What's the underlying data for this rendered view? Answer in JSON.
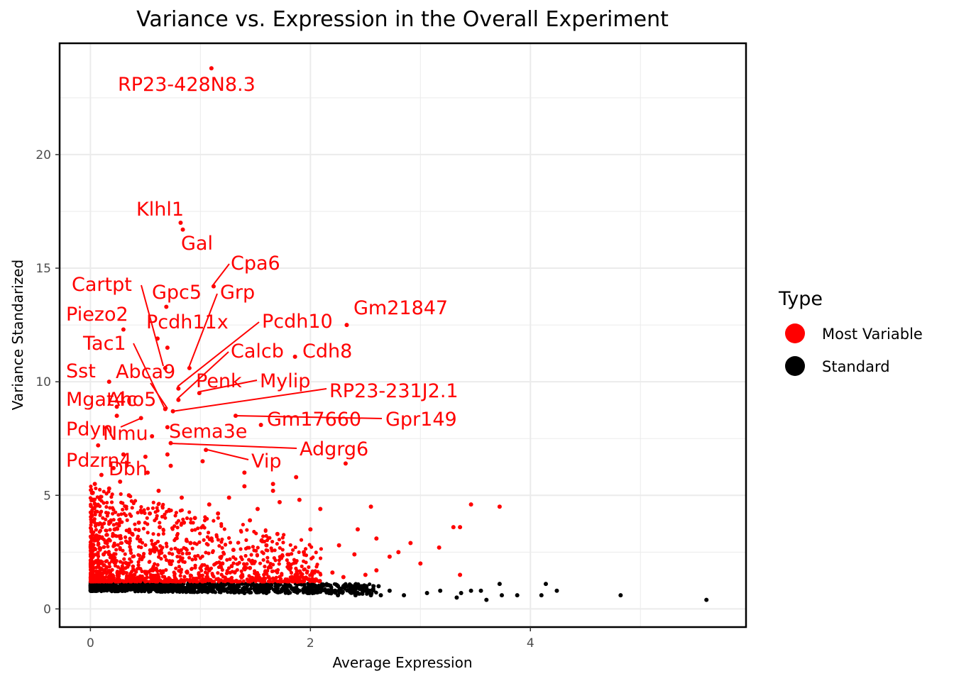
{
  "chart_data": {
    "type": "scatter",
    "title": "Variance vs. Expression in the Overall Experiment",
    "xlabel": "Average Expression",
    "ylabel": "Variance Standarized",
    "xlim": [
      -0.28,
      5.96
    ],
    "ylim": [
      -0.8,
      24.9
    ],
    "x_ticks": [
      0,
      2,
      4
    ],
    "y_ticks": [
      0,
      5,
      10,
      15,
      20
    ],
    "grid": true,
    "legend": {
      "title": "Type",
      "position": "right",
      "entries": [
        {
          "label": "Most Variable",
          "color": "#ff0000"
        },
        {
          "label": "Standard",
          "color": "#000000"
        }
      ]
    },
    "colors": {
      "most_variable": "#ff0000",
      "standard": "#000000",
      "grid": "#ebebeb",
      "panel_border": "#000000"
    },
    "series": [
      {
        "name": "Most Variable",
        "color": "#ff0000",
        "points": [
          [
            1.1,
            23.8
          ],
          [
            0.82,
            17.0
          ],
          [
            0.84,
            16.7
          ],
          [
            1.12,
            14.2
          ],
          [
            0.69,
            13.3
          ],
          [
            0.3,
            12.3
          ],
          [
            2.33,
            12.5
          ],
          [
            0.7,
            11.5
          ],
          [
            0.61,
            11.9
          ],
          [
            1.86,
            11.1
          ],
          [
            0.9,
            10.6
          ],
          [
            0.68,
            10.6
          ],
          [
            0.17,
            10.0
          ],
          [
            0.8,
            9.7
          ],
          [
            0.99,
            9.5
          ],
          [
            0.8,
            9.2
          ],
          [
            0.24,
            8.9
          ],
          [
            0.68,
            8.8
          ],
          [
            0.75,
            8.7
          ],
          [
            1.32,
            8.5
          ],
          [
            0.24,
            8.5
          ],
          [
            0.46,
            8.4
          ],
          [
            1.55,
            8.1
          ],
          [
            0.7,
            8.0
          ],
          [
            0.56,
            7.6
          ],
          [
            0.73,
            7.3
          ],
          [
            0.07,
            7.2
          ],
          [
            1.05,
            7.0
          ],
          [
            0.3,
            6.8
          ],
          [
            0.7,
            6.8
          ],
          [
            0.5,
            6.7
          ],
          [
            1.02,
            6.5
          ],
          [
            2.32,
            6.4
          ],
          [
            0.73,
            6.3
          ],
          [
            0.21,
            6.2
          ],
          [
            0.52,
            6.0
          ],
          [
            1.4,
            6.0
          ],
          [
            0.1,
            5.9
          ],
          [
            1.87,
            5.8
          ],
          [
            0.27,
            5.6
          ],
          [
            0.04,
            5.5
          ],
          [
            1.4,
            5.4
          ],
          [
            1.66,
            5.5
          ],
          [
            0.17,
            5.3
          ],
          [
            0.62,
            5.2
          ],
          [
            1.66,
            5.2
          ],
          [
            0.35,
            5.0
          ],
          [
            0.83,
            4.9
          ],
          [
            1.26,
            4.9
          ],
          [
            1.72,
            4.7
          ],
          [
            1.9,
            4.8
          ],
          [
            3.46,
            4.6
          ],
          [
            3.72,
            4.5
          ],
          [
            2.55,
            4.5
          ],
          [
            1.08,
            4.6
          ],
          [
            1.52,
            4.4
          ],
          [
            0.54,
            4.2
          ],
          [
            0.95,
            4.0
          ],
          [
            2.09,
            4.4
          ],
          [
            1.16,
            4.2
          ],
          [
            1.45,
            3.9
          ],
          [
            0.44,
            3.8
          ],
          [
            0.85,
            3.8
          ],
          [
            3.36,
            3.6
          ],
          [
            3.3,
            3.6
          ],
          [
            0.22,
            3.5
          ],
          [
            0.63,
            3.6
          ],
          [
            2.0,
            3.5
          ],
          [
            2.43,
            3.5
          ],
          [
            1.7,
            3.3
          ],
          [
            2.6,
            3.1
          ],
          [
            0.38,
            3.3
          ],
          [
            1.1,
            3.1
          ],
          [
            2.91,
            2.9
          ],
          [
            3.17,
            2.7
          ],
          [
            0.91,
            2.9
          ],
          [
            1.6,
            2.8
          ],
          [
            2.26,
            2.8
          ],
          [
            2.8,
            2.5
          ],
          [
            0.15,
            2.9
          ],
          [
            0.58,
            2.7
          ],
          [
            1.3,
            2.6
          ],
          [
            2.4,
            2.4
          ],
          [
            1.94,
            2.5
          ],
          [
            2.72,
            2.3
          ],
          [
            3.0,
            2.0
          ],
          [
            2.6,
            1.7
          ],
          [
            1.8,
            2.0
          ],
          [
            3.36,
            1.5
          ],
          [
            0.48,
            2.3
          ],
          [
            0.05,
            2.1
          ],
          [
            0.12,
            2.4
          ],
          [
            0.33,
            2.0
          ],
          [
            0.72,
            2.1
          ],
          [
            1.2,
            2.0
          ],
          [
            1.45,
            1.8
          ],
          [
            0.02,
            1.8
          ],
          [
            0.26,
            1.6
          ],
          [
            0.88,
            1.6
          ],
          [
            1.08,
            1.7
          ],
          [
            2.2,
            1.6
          ],
          [
            2.5,
            1.5
          ],
          [
            0.4,
            1.5
          ],
          [
            0.62,
            1.4
          ],
          [
            1.62,
            1.4
          ],
          [
            2.05,
            1.3
          ],
          [
            0.95,
            1.3
          ],
          [
            1.88,
            1.2
          ],
          [
            0.1,
            1.4
          ],
          [
            0.55,
            1.7
          ],
          [
            1.38,
            1.5
          ],
          [
            2.3,
            1.4
          ]
        ]
      },
      {
        "name": "Standard",
        "color": "#000000",
        "points": [
          [
            5.6,
            0.4
          ],
          [
            4.82,
            0.6
          ],
          [
            4.24,
            0.8
          ],
          [
            4.14,
            1.1
          ],
          [
            4.1,
            0.6
          ],
          [
            3.88,
            0.6
          ],
          [
            3.74,
            0.6
          ],
          [
            3.6,
            0.4
          ],
          [
            3.72,
            1.1
          ],
          [
            3.55,
            0.8
          ],
          [
            3.46,
            0.8
          ],
          [
            3.37,
            0.7
          ],
          [
            3.33,
            0.5
          ],
          [
            3.18,
            0.8
          ],
          [
            3.06,
            0.7
          ],
          [
            2.85,
            0.6
          ],
          [
            2.64,
            0.6
          ],
          [
            2.55,
            0.6
          ],
          [
            2.72,
            0.8
          ],
          [
            2.62,
            1.0
          ],
          [
            2.41,
            0.6
          ],
          [
            2.51,
            1.0
          ],
          [
            2.25,
            0.6
          ],
          [
            2.17,
            0.7
          ],
          [
            2.3,
            1.0
          ],
          [
            2.1,
            0.9
          ],
          [
            1.99,
            0.7
          ],
          [
            2.02,
            1.0
          ],
          [
            1.9,
            0.8
          ],
          [
            1.8,
            0.7
          ],
          [
            1.7,
            0.9
          ],
          [
            1.6,
            0.7
          ],
          [
            1.55,
            1.0
          ],
          [
            1.5,
            0.8
          ],
          [
            1.4,
            0.7
          ],
          [
            1.3,
            0.8
          ],
          [
            1.2,
            0.9
          ],
          [
            1.1,
            0.8
          ],
          [
            1.0,
            0.9
          ],
          [
            0.9,
            0.8
          ],
          [
            0.8,
            0.9
          ],
          [
            0.7,
            0.8
          ],
          [
            0.6,
            0.9
          ],
          [
            0.5,
            0.9
          ],
          [
            0.4,
            0.9
          ],
          [
            0.3,
            1.0
          ],
          [
            0.2,
            0.9
          ],
          [
            0.1,
            1.0
          ],
          [
            0.01,
            1.0
          ],
          [
            0.01,
            0.8
          ]
        ]
      }
    ],
    "labels": [
      {
        "text": "RP23-428N8.3",
        "x": 1.1,
        "y": 23.8
      },
      {
        "text": "Klhl1",
        "x": 0.82,
        "y": 17.0
      },
      {
        "text": "Gal",
        "x": 0.84,
        "y": 16.7
      },
      {
        "text": "Cpa6",
        "x": 1.12,
        "y": 14.2
      },
      {
        "text": "Cartpt",
        "x": 0.68,
        "y": 10.6
      },
      {
        "text": "Gpc5",
        "x": 0.69,
        "y": 13.3
      },
      {
        "text": "Grp",
        "x": 0.9,
        "y": 10.6
      },
      {
        "text": "Piezo2",
        "x": 0.3,
        "y": 12.3
      },
      {
        "text": "Gm21847",
        "x": 2.33,
        "y": 12.5
      },
      {
        "text": "Pcdh11x",
        "x": 0.7,
        "y": 11.5
      },
      {
        "text": "Pcdh10",
        "x": 0.8,
        "y": 9.7
      },
      {
        "text": "Tac1",
        "x": 0.68,
        "y": 8.8
      },
      {
        "text": "Calcb",
        "x": 0.8,
        "y": 9.2
      },
      {
        "text": "Cdh8",
        "x": 1.86,
        "y": 11.1
      },
      {
        "text": "Sst",
        "x": 0.17,
        "y": 10.0
      },
      {
        "text": "Abca9",
        "x": 0.75,
        "y": 8.7
      },
      {
        "text": "Penk",
        "x": 0.75,
        "y": 8.7
      },
      {
        "text": "Mylip",
        "x": 0.99,
        "y": 9.5
      },
      {
        "text": "RP23-231J2.1",
        "x": 0.75,
        "y": 8.7
      },
      {
        "text": "Mgat4c",
        "x": 0.24,
        "y": 8.9
      },
      {
        "text": "Aho5",
        "x": 0.24,
        "y": 8.5
      },
      {
        "text": "Gm17660",
        "x": 1.55,
        "y": 8.1
      },
      {
        "text": "Gpr149",
        "x": 1.32,
        "y": 8.5
      },
      {
        "text": "Pdyn",
        "x": 0.46,
        "y": 8.4
      },
      {
        "text": "Nmu",
        "x": 0.56,
        "y": 7.6
      },
      {
        "text": "Sema3e",
        "x": 0.7,
        "y": 8.0
      },
      {
        "text": "Adgrg6",
        "x": 0.73,
        "y": 7.3
      },
      {
        "text": "Pdzrn4",
        "x": 0.07,
        "y": 7.2
      },
      {
        "text": "Dbh",
        "x": 0.3,
        "y": 6.8
      },
      {
        "text": "Vip",
        "x": 1.05,
        "y": 7.0
      }
    ]
  }
}
